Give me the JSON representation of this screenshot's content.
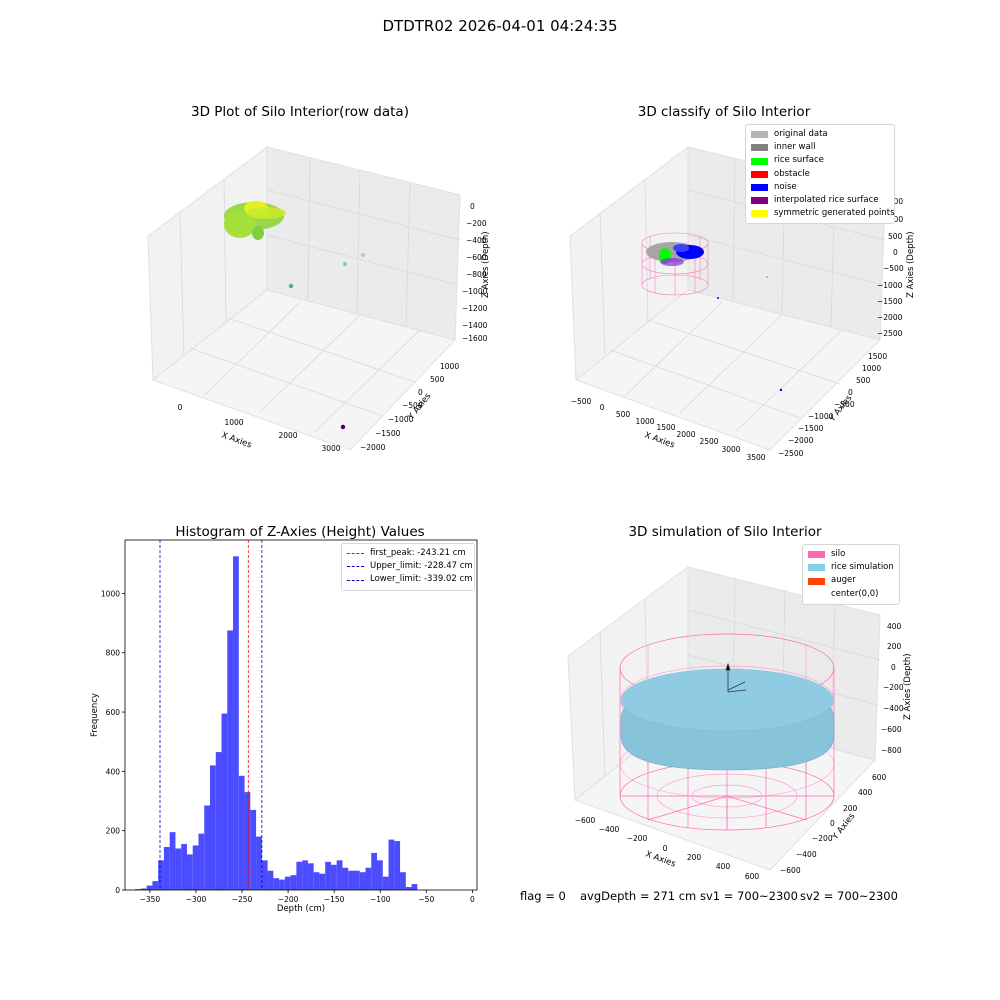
{
  "suptitle": "DTDTR02 2026-04-01 04:24:35",
  "colors": {
    "histogram_bar": "#4b4bff",
    "first_peak_line": "#ff0000",
    "limit_line": "#0000cc",
    "silo_mesh": "#ff69b4",
    "rice_surface": "#87c4dc",
    "pane": "#f2f2f2",
    "grid": "#dcdcdc"
  },
  "plots": {
    "raw": {
      "title": "3D Plot of Silo Interior(row data)",
      "xlabel": "X Axies",
      "ylabel": "Y Axies",
      "zlabel": "Z Axies (Depth)",
      "xticks": [
        "0",
        "1000",
        "2000",
        "3000"
      ],
      "yticks": [
        "1000",
        "500",
        "0",
        "−500",
        "−1000",
        "−1500",
        "−2000"
      ],
      "zticks": [
        "0",
        "−200",
        "−400",
        "−600",
        "−800",
        "−1000",
        "−1200",
        "−1400",
        "−1600"
      ]
    },
    "classify": {
      "title": "3D classify of Silo Interior",
      "xlabel": "X Axies",
      "ylabel": "Y Axies",
      "zlabel": "Z Axies (Depth)",
      "xticks": [
        "−500",
        "0",
        "500",
        "1000",
        "1500",
        "2000",
        "2500",
        "3000",
        "3500"
      ],
      "yticks": [
        "1500",
        "1000",
        "500",
        "0",
        "−500",
        "−1000",
        "−1500",
        "−2000",
        "−2500"
      ],
      "zticks": [
        "1500",
        "1000",
        "500",
        "0",
        "−500",
        "−1000",
        "−1500",
        "−2000",
        "−2500"
      ],
      "legend": [
        {
          "label": "original data",
          "color": "#b4b4b4"
        },
        {
          "label": "inner wall",
          "color": "#808080"
        },
        {
          "label": "rice surface",
          "color": "#00ff00"
        },
        {
          "label": "obstacle",
          "color": "#ff0000"
        },
        {
          "label": "noise",
          "color": "#0000ff"
        },
        {
          "label": "interpolated rice surface",
          "color": "#800080"
        },
        {
          "label": "symmetric generated points",
          "color": "#ffff00"
        }
      ]
    },
    "simulation": {
      "title": "3D simulation of Silo Interior",
      "xlabel": "X Axies",
      "ylabel": "Y Axies",
      "zlabel": "Z Axies (Depth)",
      "xticks": [
        "−600",
        "−400",
        "−200",
        "0",
        "200",
        "400",
        "600"
      ],
      "yticks": [
        "600",
        "400",
        "200",
        "0",
        "−200",
        "−400",
        "−600"
      ],
      "zticks": [
        "400",
        "200",
        "0",
        "−200",
        "−400",
        "−600",
        "−800"
      ],
      "legend": [
        {
          "label": "silo",
          "color": "#ff69b4"
        },
        {
          "label": "rice simulation",
          "color": "#87ceeb"
        },
        {
          "label": "auger",
          "color": "#ff4500"
        },
        {
          "label": "center(0,0)",
          "color": "#ffffff"
        }
      ]
    }
  },
  "chart_data": {
    "type": "bar",
    "title": "Histogram of Z-Axies (Height) Values",
    "xlabel": "Depth (cm)",
    "ylabel": "Frequency",
    "xlim": [
      -377,
      5
    ],
    "ylim": [
      0,
      1180
    ],
    "xticks": [
      -350,
      -300,
      -250,
      -200,
      -150,
      -100,
      -50,
      0
    ],
    "yticks": [
      0,
      200,
      400,
      600,
      800,
      1000
    ],
    "bin_width": 6.25,
    "bin_start": -366,
    "values": [
      3,
      5,
      15,
      30,
      100,
      145,
      195,
      140,
      155,
      120,
      150,
      190,
      285,
      420,
      465,
      595,
      875,
      1125,
      385,
      330,
      270,
      180,
      100,
      65,
      40,
      35,
      45,
      50,
      95,
      100,
      90,
      60,
      55,
      95,
      85,
      100,
      75,
      65,
      65,
      60,
      75,
      125,
      100,
      45,
      170,
      165,
      60,
      10,
      20
    ],
    "vlines": [
      {
        "label": "first_peak: -243.21 cm",
        "x": -243.21,
        "color": "#ff0000"
      },
      {
        "label": "Upper_limit: -228.47 cm",
        "x": -228.47,
        "color": "#0000cc"
      },
      {
        "label": "Lower_limit: -339.02 cm",
        "x": -339.02,
        "color": "#0000cc"
      }
    ],
    "grid": false,
    "legend_position": "top-right"
  },
  "status": {
    "flag": "flag = 0",
    "avg": "avgDepth = 271 cm",
    "sv1": "sv1 = 700~2300",
    "sv2": "sv2 = 700~2300"
  }
}
